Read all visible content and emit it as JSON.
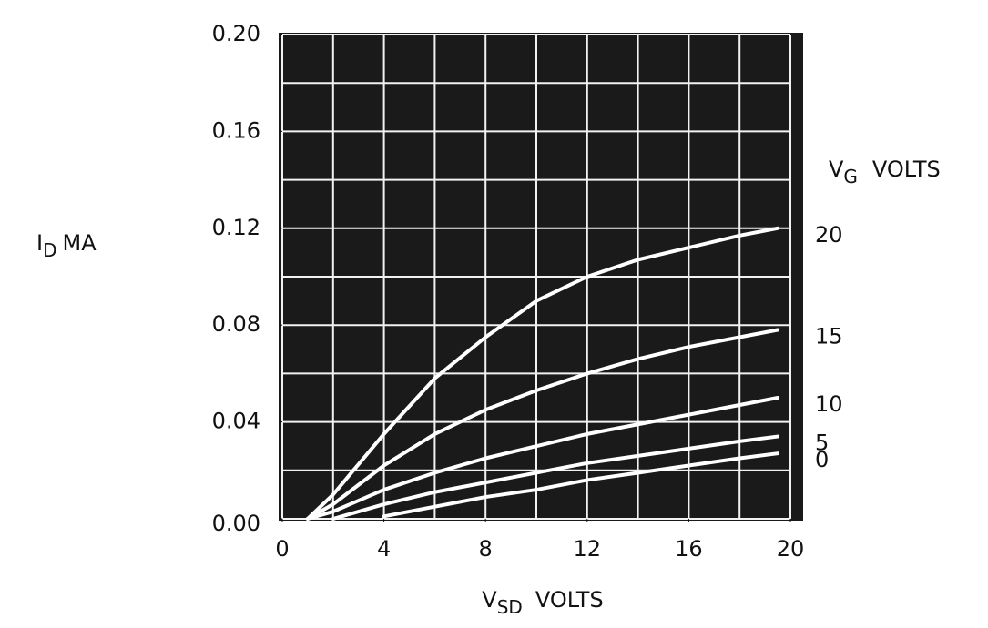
{
  "chart_data": {
    "type": "line",
    "xlabel": {
      "symbol": "V",
      "subscript": "SD",
      "unit": "VOLTS"
    },
    "ylabel": {
      "symbol": "I",
      "subscript": "D",
      "unit": "MA"
    },
    "legend_title": {
      "symbol": "V",
      "subscript": "G",
      "unit": "VOLTS"
    },
    "x": [
      1,
      2,
      4,
      6,
      8,
      10,
      12,
      14,
      16,
      18,
      19.5
    ],
    "series": [
      {
        "name": "20",
        "color": "#ffffff",
        "values": [
          0,
          0.01,
          0.035,
          0.058,
          0.075,
          0.09,
          0.1,
          0.107,
          0.112,
          0.117,
          0.12
        ]
      },
      {
        "name": "15",
        "color": "#ffffff",
        "values": [
          0,
          0.006,
          0.022,
          0.035,
          0.045,
          0.053,
          0.06,
          0.066,
          0.071,
          0.075,
          0.078
        ]
      },
      {
        "name": "10",
        "color": "#ffffff",
        "values": [
          0,
          0.003,
          0.012,
          0.019,
          0.025,
          0.03,
          0.035,
          0.039,
          0.043,
          0.047,
          0.05
        ]
      },
      {
        "name": "5",
        "color": "#ffffff",
        "values": [
          null,
          0,
          0.006,
          0.011,
          0.015,
          0.019,
          0.023,
          0.026,
          0.029,
          0.032,
          0.034
        ]
      },
      {
        "name": "0",
        "color": "#ffffff",
        "values": [
          null,
          null,
          0.001,
          0.005,
          0.009,
          0.012,
          0.016,
          0.019,
          0.022,
          0.025,
          0.027
        ]
      }
    ],
    "xlim": [
      0,
      20
    ],
    "ylim": [
      0,
      0.2
    ],
    "xticks": [
      0,
      4,
      8,
      12,
      16,
      20
    ],
    "yticks": [
      {
        "value": 0,
        "label": "0.00"
      },
      0.04,
      0.08,
      0.12,
      0.16,
      {
        "value": 0.2,
        "label": "0.20"
      }
    ],
    "xgrid": [
      0,
      2,
      4,
      6,
      8,
      10,
      12,
      14,
      16,
      18,
      20
    ],
    "ygrid": [
      0,
      0.02,
      0.04,
      0.06,
      0.08,
      0.1,
      0.12,
      0.14,
      0.16,
      0.18,
      0.2
    ],
    "grid": true,
    "background": "#1a1a1a",
    "grid_color": "#f2f2f2"
  }
}
